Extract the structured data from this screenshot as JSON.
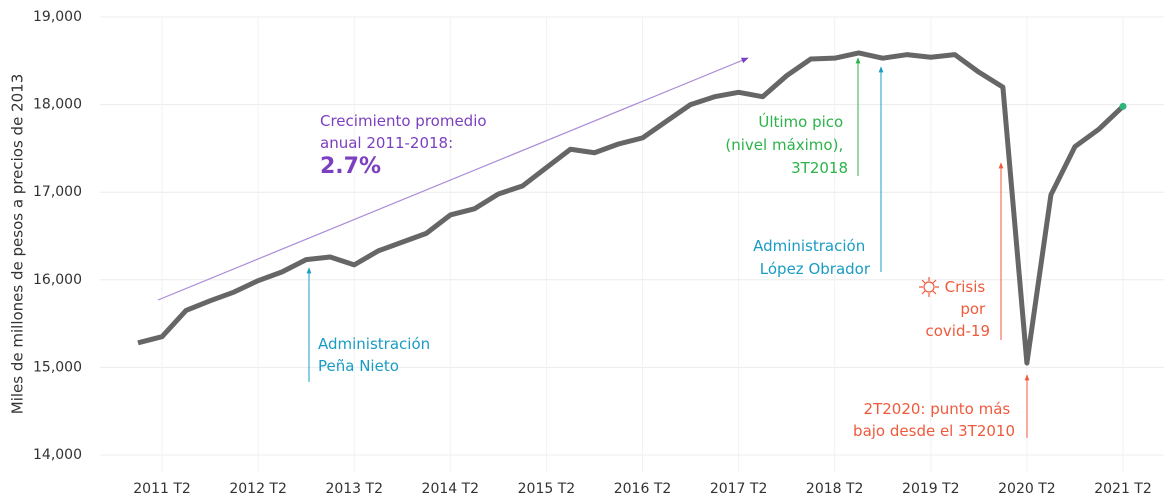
{
  "chart_data": {
    "type": "line",
    "y_label": "Miles de millones de pesos a precios de 2013",
    "categories": [
      null,
      "2011 T2",
      null,
      null,
      null,
      "2012 T2",
      null,
      null,
      null,
      "2013 T2",
      null,
      null,
      null,
      "2014 T2",
      null,
      null,
      null,
      "2015 T2",
      null,
      null,
      null,
      "2016 T2",
      null,
      null,
      null,
      "2017 T2",
      null,
      null,
      null,
      "2018 T2",
      null,
      null,
      null,
      "2019 T2",
      null,
      null,
      null,
      "2020 T2",
      null,
      null,
      null,
      "2021 T2"
    ],
    "series": [
      {
        "color": "#666666",
        "last_point_color": "#2db57a",
        "values": [
          15280,
          15350,
          15650,
          15760,
          15860,
          15990,
          16090,
          16230,
          16260,
          16170,
          16330,
          16430,
          16530,
          16740,
          16810,
          16980,
          17070,
          17280,
          17490,
          17450,
          17550,
          17620,
          17810,
          18000,
          18090,
          18140,
          18090,
          18330,
          18520,
          18530,
          18590,
          18530,
          18570,
          18540,
          18570,
          18370,
          18200,
          15050,
          16970,
          17520,
          17720,
          17980
        ]
      }
    ],
    "ylim": [
      13800,
      19000
    ],
    "yticks": [
      {
        "value": 14000,
        "label": "14,000"
      },
      {
        "value": 15000,
        "label": "15,000"
      },
      {
        "value": 16000,
        "label": "16,000"
      },
      {
        "value": 17000,
        "label": "17,000"
      },
      {
        "value": 18000,
        "label": "18,000"
      },
      {
        "value": 19000,
        "label": "19,000"
      }
    ],
    "grid": true,
    "annotations": {
      "growth": {
        "lines": [
          "Crecimiento promedio",
          "anual 2011-2018:"
        ],
        "value_label": "2.7%"
      },
      "pena": {
        "lines": [
          "Administración",
          "Peña Nieto"
        ]
      },
      "peak": {
        "lines": [
          "Último pico",
          "(nivel máximo),",
          "3T2018"
        ]
      },
      "amlo": {
        "lines": [
          "Administración",
          "López Obrador"
        ]
      },
      "covid": {
        "lines": [
          "Crisis",
          "por",
          "covid-19"
        ]
      },
      "low": {
        "lines": [
          "2T2020: punto más",
          "bajo desde el 3T2010"
        ]
      }
    }
  }
}
